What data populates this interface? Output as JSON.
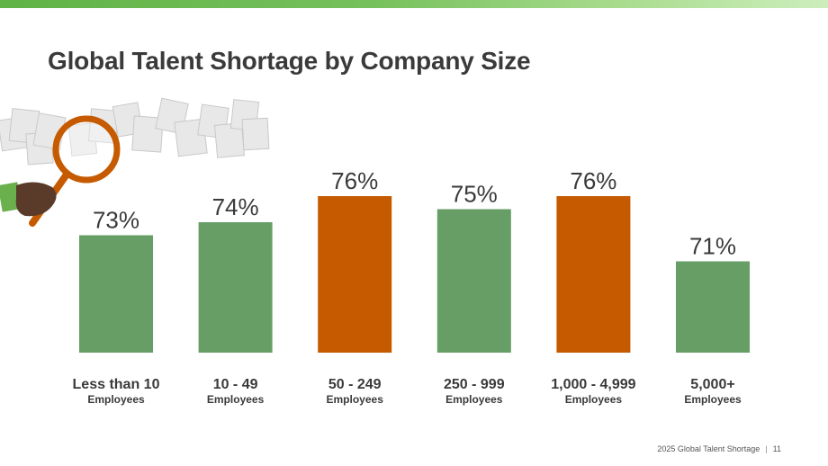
{
  "page": {
    "title": "Global Talent Shortage by Company Size",
    "footer": {
      "report": "2025 Global Talent Shortage",
      "separator": "|",
      "page_number": "11"
    }
  },
  "colors": {
    "green_bar": "#669e66",
    "orange_bar": "#c55a00",
    "text": "#3a3a3a",
    "top_band": "#76c05c"
  },
  "illustration": {
    "icons": [
      "document-stack-icon",
      "magnifying-glass-icon",
      "hand-icon"
    ]
  },
  "chart_data": {
    "type": "bar",
    "title": "",
    "xlabel": "",
    "ylabel": "",
    "ylim": [
      64,
      78
    ],
    "categories": [
      {
        "main": "Less than 10",
        "sub": "Employees"
      },
      {
        "main": "10 - 49",
        "sub": "Employees"
      },
      {
        "main": "50 - 249",
        "sub": "Employees"
      },
      {
        "main": "250 - 999",
        "sub": "Employees"
      },
      {
        "main": "1,000 - 4,999",
        "sub": "Employees"
      },
      {
        "main": "5,000+",
        "sub": "Employees"
      }
    ],
    "values": [
      73,
      74,
      76,
      75,
      76,
      71
    ],
    "value_labels": [
      "73%",
      "74%",
      "76%",
      "75%",
      "76%",
      "71%"
    ],
    "bar_colors": [
      "#669e66",
      "#669e66",
      "#c55a00",
      "#669e66",
      "#c55a00",
      "#669e66"
    ],
    "grid": false,
    "legend": "none"
  }
}
